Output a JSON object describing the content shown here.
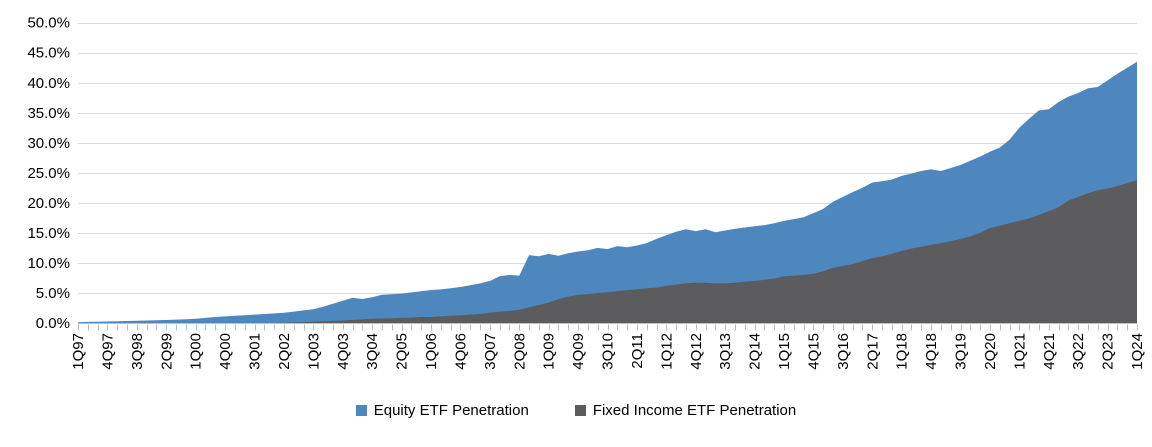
{
  "chart_data": {
    "type": "area",
    "plot_style": "overlapping-areas",
    "title": "",
    "grid": "horizontal",
    "legend_position": "bottom",
    "x_axis": {
      "label_every_n_quarters": 3,
      "total_points": 109,
      "tick_labels": [
        "1Q97",
        "4Q97",
        "3Q98",
        "2Q99",
        "1Q00",
        "4Q00",
        "3Q01",
        "2Q02",
        "1Q03",
        "4Q03",
        "3Q04",
        "2Q05",
        "1Q06",
        "4Q06",
        "3Q07",
        "2Q08",
        "1Q09",
        "4Q09",
        "3Q10",
        "2Q11",
        "1Q12",
        "4Q12",
        "3Q13",
        "2Q14",
        "1Q15",
        "4Q15",
        "3Q16",
        "2Q17",
        "1Q18",
        "4Q18",
        "3Q19",
        "2Q20",
        "1Q21",
        "4Q21",
        "3Q22",
        "2Q23",
        "1Q24"
      ]
    },
    "y_axis": {
      "min": 0,
      "max": 50,
      "step": 5,
      "unit": "%",
      "tick_labels": [
        "0.0%",
        "5.0%",
        "10.0%",
        "15.0%",
        "20.0%",
        "25.0%",
        "30.0%",
        "35.0%",
        "40.0%",
        "45.0%",
        "50.0%"
      ]
    },
    "colors": {
      "gridline": "#d9d9d9",
      "axis_line": "#bfbfbf",
      "tick": "#bfbfbf",
      "text": "#000000"
    },
    "series": [
      {
        "name": "Equity ETF Penetration",
        "color": "#4E86BE",
        "values": [
          0.15,
          0.18,
          0.22,
          0.25,
          0.3,
          0.34,
          0.38,
          0.42,
          0.46,
          0.5,
          0.56,
          0.62,
          0.7,
          0.85,
          1.0,
          1.1,
          1.2,
          1.3,
          1.4,
          1.5,
          1.6,
          1.72,
          1.9,
          2.1,
          2.3,
          2.7,
          3.2,
          3.7,
          4.2,
          4.0,
          4.3,
          4.7,
          4.8,
          4.9,
          5.1,
          5.3,
          5.5,
          5.6,
          5.8,
          6.0,
          6.3,
          6.6,
          7.0,
          7.8,
          8.0,
          7.9,
          11.3,
          11.1,
          11.5,
          11.2,
          11.6,
          11.9,
          12.1,
          12.5,
          12.3,
          12.8,
          12.6,
          12.9,
          13.3,
          14.0,
          14.6,
          15.2,
          15.6,
          15.3,
          15.6,
          15.1,
          15.4,
          15.7,
          15.9,
          16.1,
          16.3,
          16.6,
          17.0,
          17.3,
          17.6,
          18.3,
          19.0,
          20.2,
          21.0,
          21.8,
          22.5,
          23.4,
          23.6,
          23.9,
          24.5,
          24.9,
          25.3,
          25.6,
          25.3,
          25.8,
          26.3,
          27.0,
          27.7,
          28.5,
          29.2,
          30.5,
          32.5,
          34.0,
          35.4,
          35.6,
          36.8,
          37.7,
          38.3,
          39.1,
          39.3,
          40.4,
          41.5,
          42.5,
          43.5
        ]
      },
      {
        "name": "Fixed Income ETF Penetration",
        "color": "#5C5C5E",
        "values": [
          0,
          0,
          0,
          0,
          0,
          0,
          0,
          0,
          0,
          0,
          0,
          0,
          0,
          0,
          0,
          0,
          0,
          0,
          0,
          0,
          0,
          0.05,
          0.1,
          0.15,
          0.2,
          0.3,
          0.35,
          0.4,
          0.5,
          0.6,
          0.7,
          0.75,
          0.8,
          0.85,
          0.9,
          1.0,
          1.0,
          1.1,
          1.2,
          1.3,
          1.4,
          1.5,
          1.7,
          1.9,
          2.0,
          2.2,
          2.6,
          3.0,
          3.4,
          4.0,
          4.4,
          4.7,
          4.8,
          5.0,
          5.1,
          5.3,
          5.5,
          5.6,
          5.8,
          5.9,
          6.2,
          6.4,
          6.6,
          6.7,
          6.7,
          6.6,
          6.6,
          6.7,
          6.9,
          7.0,
          7.2,
          7.4,
          7.8,
          7.9,
          8.0,
          8.2,
          8.6,
          9.2,
          9.5,
          9.8,
          10.3,
          10.8,
          11.1,
          11.5,
          12.0,
          12.4,
          12.7,
          13.0,
          13.3,
          13.6,
          14.0,
          14.4,
          15.0,
          15.8,
          16.2,
          16.6,
          17.0,
          17.4,
          18.0,
          18.6,
          19.3,
          20.4,
          21.0,
          21.6,
          22.1,
          22.4,
          22.8,
          23.3,
          23.8
        ]
      }
    ]
  }
}
